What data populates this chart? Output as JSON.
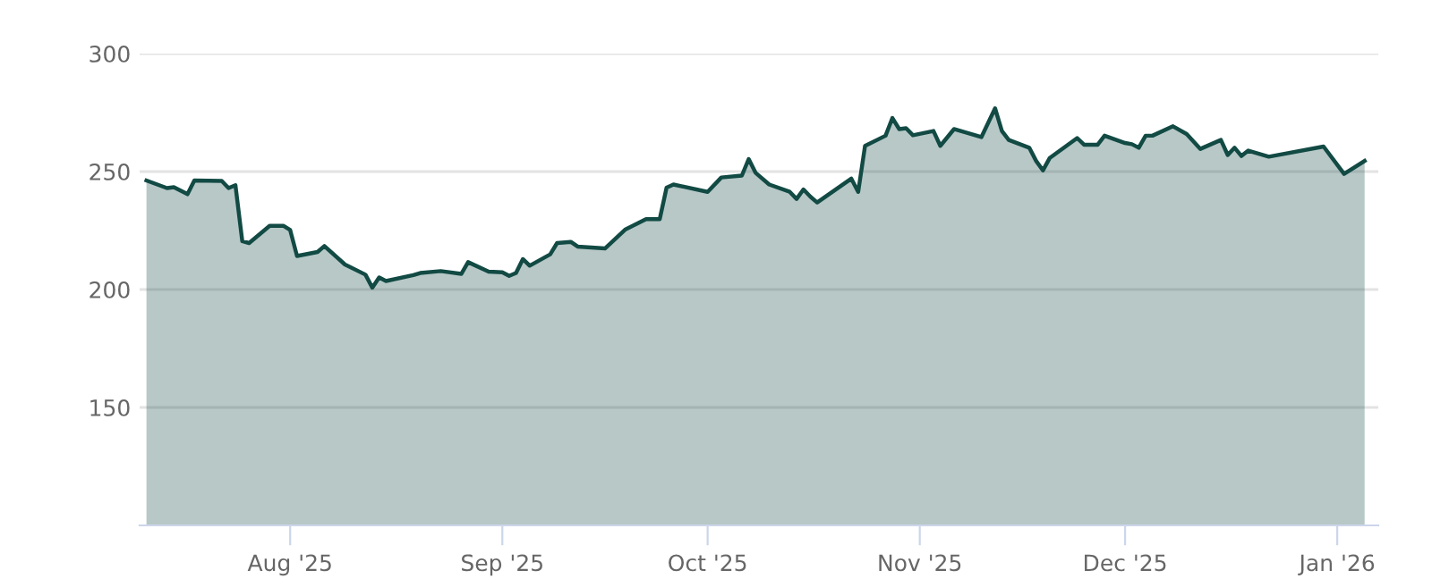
{
  "chart_data": {
    "type": "area",
    "x": [
      "2025-07-11",
      "2025-07-14",
      "2025-07-15",
      "2025-07-17",
      "2025-07-18",
      "2025-07-22",
      "2025-07-23",
      "2025-07-24",
      "2025-07-25",
      "2025-07-26",
      "2025-07-29",
      "2025-07-31",
      "2025-08-01",
      "2025-08-02",
      "2025-08-05",
      "2025-08-06",
      "2025-08-09",
      "2025-08-12",
      "2025-08-13",
      "2025-08-14",
      "2025-08-15",
      "2025-08-19",
      "2025-08-20",
      "2025-08-23",
      "2025-08-26",
      "2025-08-27",
      "2025-08-30",
      "2025-09-01",
      "2025-09-02",
      "2025-09-03",
      "2025-09-04",
      "2025-09-05",
      "2025-09-08",
      "2025-09-09",
      "2025-09-11",
      "2025-09-12",
      "2025-09-16",
      "2025-09-19",
      "2025-09-22",
      "2025-09-24",
      "2025-09-25",
      "2025-09-26",
      "2025-10-01",
      "2025-10-03",
      "2025-10-06",
      "2025-10-07",
      "2025-10-08",
      "2025-10-10",
      "2025-10-13",
      "2025-10-14",
      "2025-10-15",
      "2025-10-16",
      "2025-10-17",
      "2025-10-22",
      "2025-10-23",
      "2025-10-24",
      "2025-10-27",
      "2025-10-28",
      "2025-10-29",
      "2025-10-30",
      "2025-10-31",
      "2025-11-03",
      "2025-11-04",
      "2025-11-06",
      "2025-11-10",
      "2025-11-12",
      "2025-11-13",
      "2025-11-14",
      "2025-11-17",
      "2025-11-18",
      "2025-11-19",
      "2025-11-20",
      "2025-11-24",
      "2025-11-25",
      "2025-11-27",
      "2025-11-28",
      "2025-12-01",
      "2025-12-02",
      "2025-12-03",
      "2025-12-04",
      "2025-12-05",
      "2025-12-08",
      "2025-12-10",
      "2025-12-12",
      "2025-12-15",
      "2025-12-16",
      "2025-12-17",
      "2025-12-18",
      "2025-12-19",
      "2025-12-22",
      "2025-12-30",
      "2026-01-02",
      "2026-01-05"
    ],
    "series": [
      {
        "color": "#124a44",
        "values": [
          246.2,
          243.0,
          243.4,
          240.4,
          246.2,
          246.0,
          243.0,
          244.2,
          220.5,
          219.7,
          227.0,
          227.0,
          225.2,
          214.2,
          215.9,
          218.4,
          210.6,
          206.3,
          200.8,
          205.1,
          203.6,
          206.1,
          207.0,
          207.8,
          206.6,
          211.6,
          207.6,
          207.3,
          205.8,
          207.0,
          212.9,
          210.1,
          214.9,
          219.7,
          220.2,
          218.2,
          217.4,
          225.5,
          229.8,
          229.8,
          243.2,
          244.5,
          241.4,
          247.5,
          248.3,
          255.3,
          249.5,
          244.5,
          241.4,
          238.4,
          242.4,
          239.4,
          236.9,
          247.0,
          241.4,
          260.9,
          265.2,
          272.7,
          268.0,
          268.4,
          265.4,
          267.2,
          260.9,
          268.0,
          264.6,
          276.8,
          267.2,
          263.4,
          260.1,
          254.5,
          250.5,
          255.8,
          264.2,
          261.4,
          261.4,
          265.2,
          262.1,
          261.6,
          260.1,
          265.2,
          265.2,
          269.2,
          265.9,
          259.6,
          263.4,
          257.0,
          260.1,
          256.6,
          258.9,
          256.3,
          260.6,
          249.0,
          254.5
        ]
      }
    ],
    "xlim": [
      "2025-07-10",
      "2026-01-07"
    ],
    "xticks": [
      {
        "value": "2025-08-01",
        "label": "Aug '25"
      },
      {
        "value": "2025-09-01",
        "label": "Sep '25"
      },
      {
        "value": "2025-10-01",
        "label": "Oct '25"
      },
      {
        "value": "2025-11-01",
        "label": "Nov '25"
      },
      {
        "value": "2025-12-01",
        "label": "Dec '25"
      },
      {
        "value": "2026-01-01",
        "label": "Jan '26"
      }
    ],
    "ylim": [
      100,
      300
    ],
    "yticks": [
      150,
      200,
      250,
      300
    ],
    "grid": "y",
    "legend": false
  }
}
